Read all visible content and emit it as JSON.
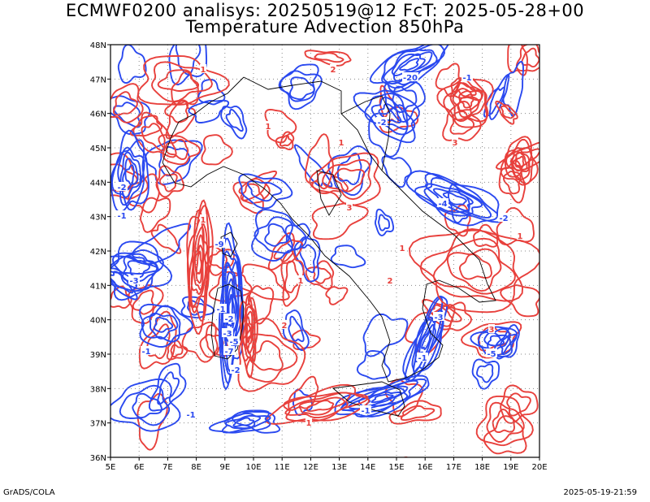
{
  "title_line1": "ECMWF0200 analisys: 20250519@12 FcT: 2025-05-28+00",
  "title_line2": "Temperature Advection 850hPa",
  "footer_left": "GrADS/COLA",
  "footer_right": "2025-05-19-21:59",
  "map": {
    "lon_labels": [
      "5E",
      "6E",
      "7E",
      "8E",
      "9E",
      "10E",
      "11E",
      "12E",
      "13E",
      "14E",
      "15E",
      "16E",
      "17E",
      "18E",
      "19E",
      "20E"
    ],
    "lat_labels": [
      "48N",
      "47N",
      "46N",
      "45N",
      "44N",
      "43N",
      "42N",
      "41N",
      "40N",
      "39N",
      "38N",
      "37N",
      "36N"
    ],
    "colors": {
      "warm": "#e8403c",
      "cold": "#2a49f0",
      "coast": "#000000",
      "grid": "#888888"
    },
    "contour_labels": {
      "cold": [
        "-1",
        "-2",
        "-3",
        "-5",
        "-7",
        "-9",
        "-20",
        "-1",
        "-2",
        "-1",
        "-3",
        "-1",
        "-2",
        "-1",
        "-4",
        "-2",
        "-5",
        "-3",
        "-1",
        "-2",
        "-1"
      ],
      "warm": [
        "1",
        "2",
        "3",
        "1",
        "2",
        "1",
        "3",
        "1",
        "2",
        "1",
        "1",
        "2",
        "1",
        "3",
        "1"
      ]
    }
  }
}
